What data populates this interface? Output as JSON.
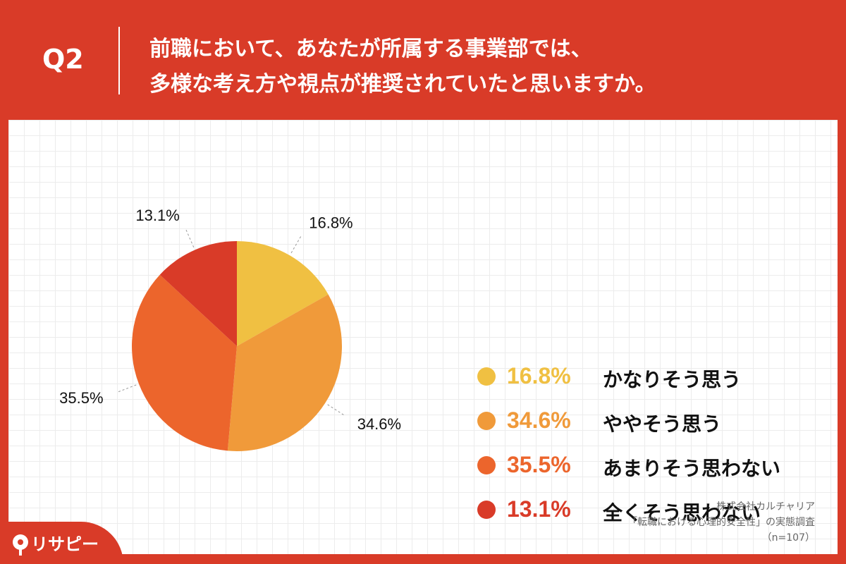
{
  "header": {
    "q_label": "Q2",
    "line1": "前職において、あなたが所属する事業部では、",
    "line2": "多様な考え方や視点が推奨されていたと思いますか。"
  },
  "colors": {
    "brand": "#d93b28"
  },
  "chart_data": {
    "type": "pie",
    "categories": [
      "かなりそう思う",
      "ややそう思う",
      "あまりそう思わない",
      "全くそう思わない"
    ],
    "values": [
      16.8,
      34.6,
      35.5,
      13.1
    ],
    "value_labels": [
      "16.8%",
      "34.6%",
      "35.5%",
      "13.1%"
    ],
    "colors": [
      "#f0c042",
      "#f09a3a",
      "#ec652c",
      "#d93b28"
    ],
    "legend_position": "right",
    "start_angle": "12 o'clock, clockwise"
  },
  "source": {
    "line1": "株式会社カルチャリア",
    "line2": "「転職における心理的安全性」の実態調査",
    "line3": "（n=107）"
  },
  "logo": {
    "text": "リサピー",
    "icon": "pin-icon"
  }
}
